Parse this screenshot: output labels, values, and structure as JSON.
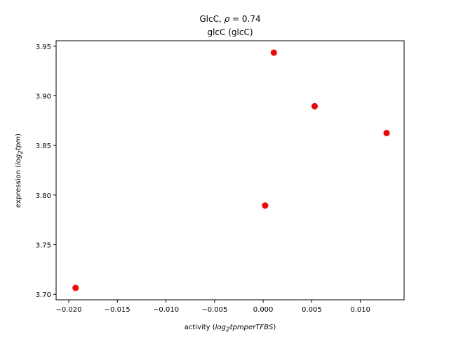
{
  "chart_data": {
    "type": "scatter",
    "title": "GlcC, ρ = 0.74",
    "title_parts": {
      "name": "GlcC, ",
      "symbol": "ρ",
      "value": " = 0.74"
    },
    "subtitle": "glcC (glcC)",
    "xlabel": "activity (log2tpmperTFBS)",
    "xlabel_parts": {
      "prefix": "activity (",
      "log": "log",
      "sub": "2",
      "unit": "tpmperTFBS",
      "suffix": ")"
    },
    "ylabel": "expression (log2tpm)",
    "ylabel_parts": {
      "prefix": "expression (",
      "log": "log",
      "sub": "2",
      "unit": "tpm",
      "suffix": ")"
    },
    "xlim": [
      -0.0213,
      0.0145
    ],
    "ylim": [
      3.6945,
      3.9555
    ],
    "xticks": [
      -0.02,
      -0.015,
      -0.01,
      -0.005,
      0.0,
      0.005,
      0.01
    ],
    "xtick_labels": [
      "−0.020",
      "−0.015",
      "−0.010",
      "−0.005",
      "0.000",
      "0.005",
      "0.010"
    ],
    "yticks": [
      3.7,
      3.75,
      3.8,
      3.85,
      3.9,
      3.95
    ],
    "ytick_labels": [
      "3.70",
      "3.75",
      "3.80",
      "3.85",
      "3.90",
      "3.95"
    ],
    "grid": false,
    "marker_color": "#ff0000",
    "points": [
      {
        "x": -0.0193,
        "y": 3.7065
      },
      {
        "x": 0.0002,
        "y": 3.7895
      },
      {
        "x": 0.0011,
        "y": 3.9435
      },
      {
        "x": 0.0053,
        "y": 3.8895
      },
      {
        "x": 0.0127,
        "y": 3.8625
      }
    ]
  }
}
